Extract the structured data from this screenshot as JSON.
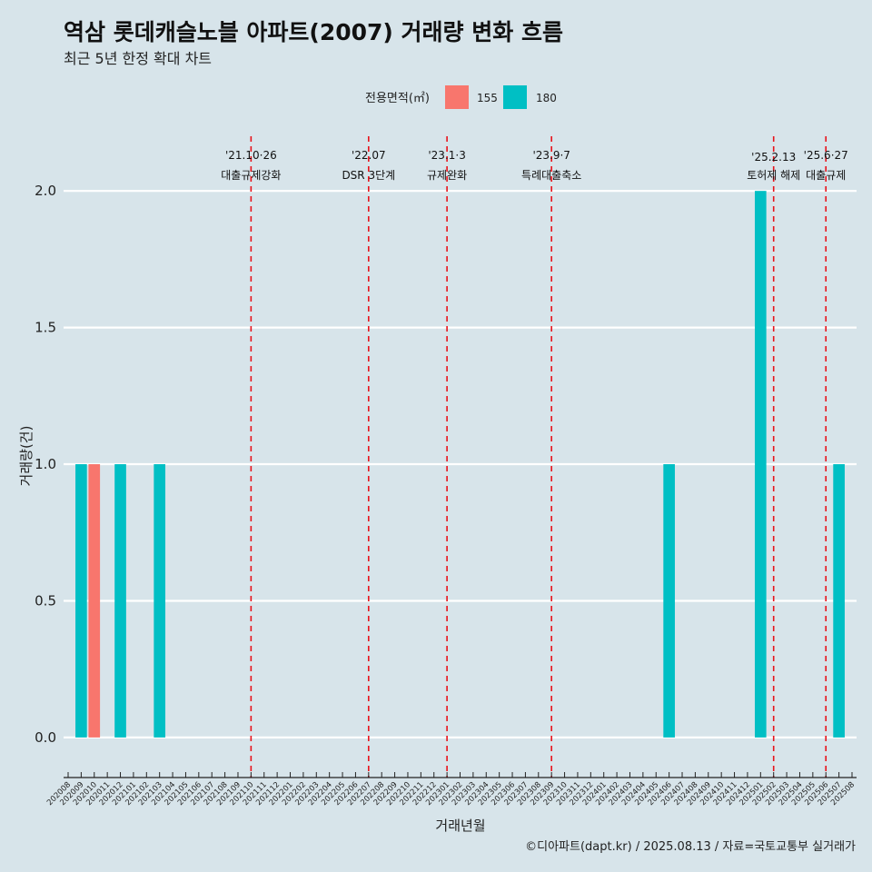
{
  "chart_data": {
    "type": "bar",
    "title": "역삼 롯데캐슬노블 아파트(2007) 거래량 변화 흐름",
    "subtitle": "최근 5년 한정 확대 차트",
    "xlabel": "거래년월",
    "ylabel": "거래량(건)",
    "ylim": [
      -0.12,
      2.2
    ],
    "yticks": [
      "0.0",
      "0.5",
      "1.0",
      "1.5",
      "2.0"
    ],
    "grid": true,
    "legend": {
      "title": "전용면적(㎡)",
      "placement": "top-center",
      "items": [
        {
          "label": "155",
          "color": "#f8766d"
        },
        {
          "label": "180",
          "color": "#00bfc4"
        }
      ]
    },
    "categories": [
      "202008",
      "202009",
      "202010",
      "202011",
      "202012",
      "202101",
      "202102",
      "202103",
      "202104",
      "202105",
      "202106",
      "202107",
      "202108",
      "202109",
      "202110",
      "202111",
      "202112",
      "202201",
      "202202",
      "202203",
      "202204",
      "202205",
      "202206",
      "202207",
      "202208",
      "202209",
      "202210",
      "202211",
      "202212",
      "202301",
      "202302",
      "202303",
      "202304",
      "202305",
      "202306",
      "202307",
      "202308",
      "202309",
      "202310",
      "202311",
      "202312",
      "202401",
      "202402",
      "202403",
      "202404",
      "202405",
      "202406",
      "202407",
      "202408",
      "202409",
      "202410",
      "202411",
      "202412",
      "202501",
      "202502",
      "202503",
      "202504",
      "202505",
      "202506",
      "202507",
      "202508"
    ],
    "bars": [
      {
        "x": "202009",
        "series": "180",
        "value": 1,
        "color": "#00bfc4"
      },
      {
        "x": "202010",
        "series": "155",
        "value": 1,
        "color": "#f8766d"
      },
      {
        "x": "202012",
        "series": "180",
        "value": 1,
        "color": "#00bfc4"
      },
      {
        "x": "202103",
        "series": "180",
        "value": 1,
        "color": "#00bfc4"
      },
      {
        "x": "202406",
        "series": "180",
        "value": 1,
        "color": "#00bfc4"
      },
      {
        "x": "202501",
        "series": "180",
        "value": 2,
        "color": "#00bfc4"
      },
      {
        "x": "202507",
        "series": "180",
        "value": 1,
        "color": "#00bfc4"
      }
    ],
    "events": [
      {
        "pos": "202110",
        "date": "'21.10·26",
        "label": "대출규제강화"
      },
      {
        "pos": "202207",
        "date": "'22.07",
        "label": "DSR 3단계"
      },
      {
        "pos": "202301",
        "date": "'23.1·3",
        "label": "규제완화"
      },
      {
        "pos": "202309",
        "date": "'23.9·7",
        "label": "특례대출축소"
      },
      {
        "pos": "202502",
        "date": "'25.2.13",
        "label": "토허제 해제"
      },
      {
        "pos": "202506",
        "date": "'25.6·27",
        "label": "대출규제"
      }
    ],
    "caption": "©디아파트(dapt.kr) / 2025.08.13 / 자료=국토교통부 실거래가",
    "colors": {
      "background": "#d7e4ea",
      "grid": "#ffffff",
      "event_line": "#e8131b"
    }
  }
}
